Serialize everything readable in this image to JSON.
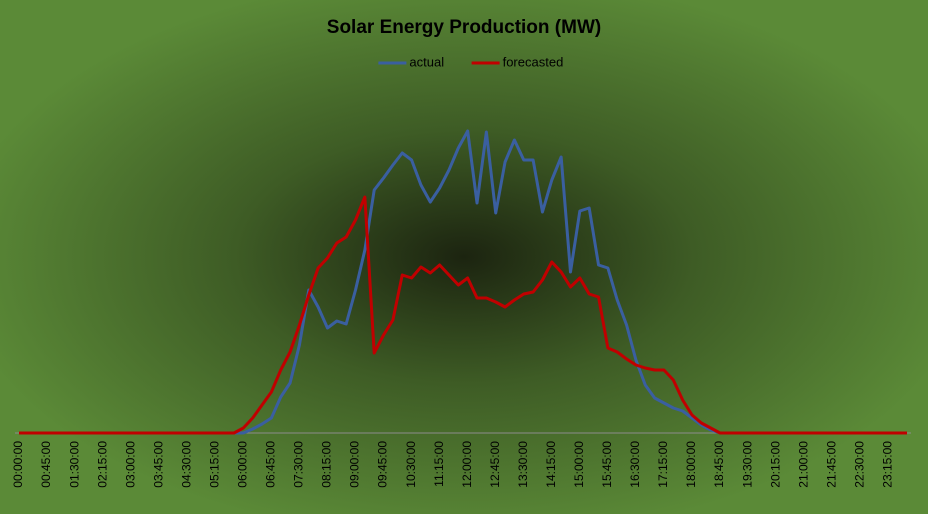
{
  "chart_data": {
    "type": "line",
    "title": "Solar Energy Production (MW)",
    "categories": [
      "00:00:00",
      null,
      null,
      "00:45:00",
      null,
      null,
      "01:30:00",
      null,
      null,
      "02:15:00",
      null,
      null,
      "03:00:00",
      null,
      null,
      "03:45:00",
      null,
      null,
      "04:30:00",
      null,
      null,
      "05:15:00",
      null,
      null,
      "06:00:00",
      null,
      null,
      "06:45:00",
      null,
      null,
      "07:30:00",
      null,
      null,
      "08:15:00",
      null,
      null,
      "09:00:00",
      null,
      null,
      "09:45:00",
      null,
      null,
      "10:30:00",
      null,
      null,
      "11:15:00",
      null,
      null,
      "12:00:00",
      null,
      null,
      "12:45:00",
      null,
      null,
      "13:30:00",
      null,
      null,
      "14:15:00",
      null,
      null,
      "15:00:00",
      null,
      null,
      "15:45:00",
      null,
      null,
      "16:30:00",
      null,
      null,
      "17:15:00",
      null,
      null,
      "18:00:00",
      null,
      null,
      "18:45:00",
      null,
      null,
      "19:30:00",
      null,
      null,
      "20:15:00",
      null,
      null,
      "21:00:00",
      null,
      null,
      "21:45:00",
      null,
      null,
      "22:30:00",
      null,
      null,
      "23:15:00",
      null,
      null
    ],
    "series": [
      {
        "name": "actual",
        "color": "#3a5fa0",
        "values": [
          0,
          0,
          0,
          0,
          0,
          0,
          0,
          0,
          0,
          0,
          0,
          0,
          0,
          0,
          0,
          0,
          0,
          0,
          0,
          0,
          0,
          0,
          0,
          0,
          0,
          4,
          9,
          15,
          36,
          50,
          88,
          143,
          126,
          105,
          112,
          109,
          143,
          183,
          243,
          255,
          268,
          280,
          273,
          248,
          231,
          245,
          263,
          285,
          302,
          230,
          301,
          220,
          271,
          293,
          273,
          273,
          221,
          253,
          276,
          161,
          222,
          225,
          168,
          165,
          133,
          108,
          73,
          48,
          35,
          30,
          25,
          22,
          15,
          8,
          3,
          0,
          0,
          0,
          0,
          0,
          0,
          0,
          0,
          0,
          0,
          0,
          0,
          0,
          0,
          0,
          0,
          0,
          0,
          0,
          0,
          0
        ]
      },
      {
        "name": "forecasted",
        "color": "#c00000",
        "values": [
          0,
          0,
          0,
          0,
          0,
          0,
          0,
          0,
          0,
          0,
          0,
          0,
          0,
          0,
          0,
          0,
          0,
          0,
          0,
          0,
          0,
          0,
          0,
          0,
          5,
          15,
          28,
          41,
          63,
          81,
          108,
          138,
          165,
          175,
          190,
          196,
          213,
          236,
          80,
          98,
          113,
          158,
          155,
          166,
          160,
          168,
          158,
          148,
          155,
          135,
          135,
          131,
          126,
          133,
          139,
          141,
          153,
          171,
          161,
          146,
          155,
          139,
          136,
          85,
          81,
          74,
          68,
          65,
          63,
          63,
          53,
          33,
          18,
          10,
          5,
          0,
          0,
          0,
          0,
          0,
          0,
          0,
          0,
          0,
          0,
          0,
          0,
          0,
          0,
          0,
          0,
          0,
          0,
          0,
          0,
          0
        ]
      }
    ],
    "ylim": [
      0,
      320
    ],
    "legend": "top"
  }
}
